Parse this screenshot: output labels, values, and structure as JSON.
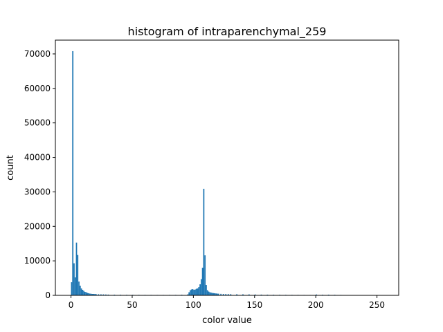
{
  "chart_data": {
    "type": "bar",
    "title": "histogram of intraparenchymal_259",
    "xlabel": "color value",
    "ylabel": "count",
    "xlim": [
      -12.75,
      267.75
    ],
    "ylim": [
      0,
      74000
    ],
    "xticks": [
      0,
      50,
      100,
      150,
      200,
      250
    ],
    "yticks": [
      0,
      10000,
      20000,
      30000,
      40000,
      50000,
      60000,
      70000
    ],
    "bar_color": "#1f77b4",
    "bin_width": 1,
    "x": [
      0,
      1,
      2,
      3,
      4,
      5,
      6,
      7,
      8,
      9,
      10,
      11,
      12,
      13,
      14,
      15,
      16,
      17,
      18,
      19,
      20,
      22,
      24,
      26,
      28,
      30,
      35,
      40,
      45,
      50,
      55,
      60,
      65,
      70,
      75,
      80,
      85,
      90,
      95,
      96,
      97,
      98,
      99,
      100,
      101,
      102,
      103,
      104,
      105,
      106,
      107,
      108,
      109,
      110,
      111,
      112,
      113,
      114,
      115,
      116,
      117,
      118,
      119,
      120,
      122,
      124,
      126,
      128,
      130,
      135,
      140,
      145,
      150,
      155,
      160,
      165,
      170,
      175,
      180,
      185,
      190,
      195,
      200,
      205,
      210,
      215,
      220,
      225,
      230
    ],
    "values": [
      3800,
      70800,
      9300,
      5200,
      15300,
      11700,
      4000,
      2800,
      2000,
      1600,
      1300,
      1000,
      900,
      700,
      600,
      500,
      450,
      400,
      400,
      380,
      350,
      320,
      300,
      280,
      250,
      220,
      200,
      180,
      160,
      150,
      140,
      130,
      130,
      120,
      120,
      130,
      140,
      180,
      300,
      900,
      1500,
      1700,
      1800,
      1600,
      1700,
      1900,
      2000,
      2400,
      3200,
      4700,
      8000,
      30900,
      11600,
      3000,
      1500,
      1100,
      900,
      800,
      700,
      650,
      600,
      550,
      500,
      480,
      430,
      400,
      380,
      360,
      340,
      320,
      300,
      280,
      250,
      220,
      200,
      180,
      160,
      150,
      140,
      130,
      120,
      110,
      250,
      180,
      200,
      160,
      120,
      80,
      60
    ]
  }
}
